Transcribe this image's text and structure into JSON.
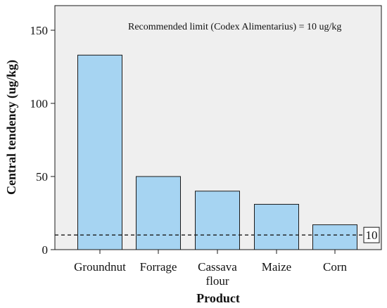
{
  "chart_data": {
    "type": "bar",
    "categories": [
      "Groundnut",
      "Forrage",
      "Cassava flour",
      "Maize",
      "Corn"
    ],
    "category_lines": [
      [
        "Groundnut"
      ],
      [
        "Forrage"
      ],
      [
        "Cassava",
        "flour"
      ],
      [
        "Maize"
      ],
      [
        "Corn"
      ]
    ],
    "values": [
      133,
      50,
      40,
      31,
      17
    ],
    "xlabel": "Product",
    "ylabel": "Central tendency (ug/kg)",
    "ylim": [
      0,
      160
    ],
    "yticks": [
      0,
      50,
      100,
      150
    ],
    "grid": false,
    "reference_line": {
      "value": 10,
      "label": "10",
      "style": "dashed"
    },
    "annotation": "Recommended limit (Codex Alimentarius) = 10 ug/kg",
    "colors": {
      "bar_fill": "#a6d4f2",
      "bar_stroke": "#1a1a1a",
      "plot_bg": "#efefef",
      "frame": "#1a1a1a"
    }
  }
}
